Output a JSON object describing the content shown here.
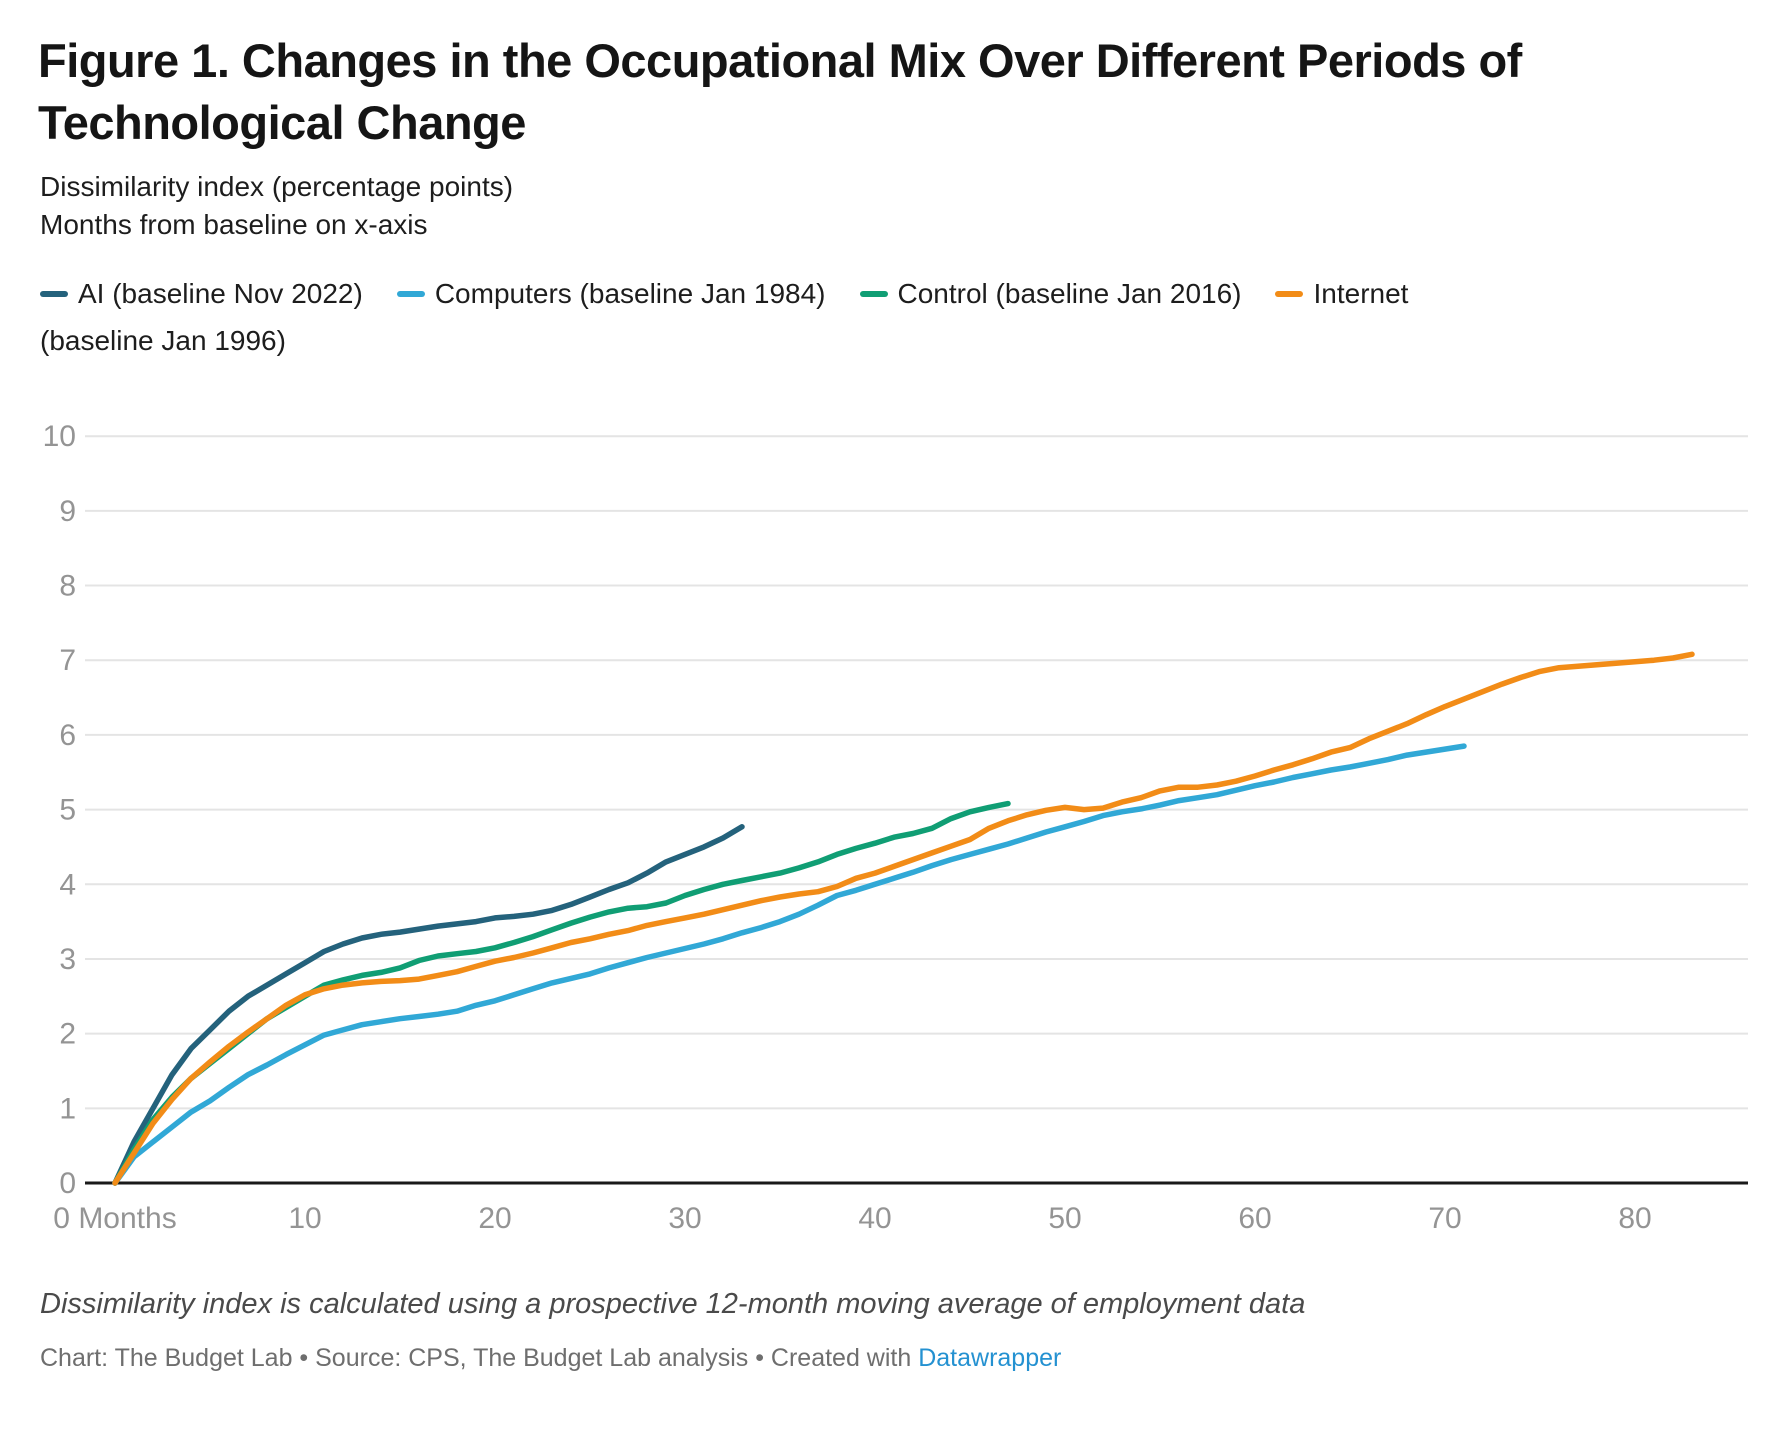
{
  "header": {
    "title": "Figure 1. Changes in the Occupational Mix Over Different Periods of Technological Change",
    "subtitle_line1": "Dissimilarity index (percentage points)",
    "subtitle_line2": "Months from baseline on x-axis"
  },
  "legend": {
    "items": [
      {
        "label": "AI (baseline Nov 2022)",
        "color": "#24627c"
      },
      {
        "label": "Computers (baseline Jan 1984)",
        "color": "#31a8d6"
      },
      {
        "label": "Control (baseline Jan 2016)",
        "color": "#109e74"
      },
      {
        "label": "Internet (baseline Jan 1996)",
        "color": "#f28c17"
      }
    ]
  },
  "chart_data": {
    "type": "line",
    "title": "Figure 1. Changes in the Occupational Mix Over Different Periods of Technological Change",
    "xlabel": "Months from baseline",
    "ylabel": "Dissimilarity index (percentage points)",
    "x_unit": "months",
    "xlim": [
      0,
      86
    ],
    "ylim": [
      0,
      10
    ],
    "grid": "horizontal",
    "legend_position": "top",
    "y_ticks": [
      0,
      1,
      2,
      3,
      4,
      5,
      6,
      7,
      8,
      9,
      10
    ],
    "x_ticks": {
      "values": [
        0,
        10,
        20,
        30,
        40,
        50,
        60,
        70,
        80
      ],
      "labels": [
        "0 Months",
        "10",
        "20",
        "30",
        "40",
        "50",
        "60",
        "70",
        "80"
      ]
    },
    "series": [
      {
        "name": "AI (baseline Nov 2022)",
        "color": "#24627c",
        "start_month": 0,
        "values": [
          0,
          0.55,
          1.0,
          1.45,
          1.8,
          2.05,
          2.3,
          2.5,
          2.65,
          2.8,
          2.95,
          3.1,
          3.2,
          3.28,
          3.33,
          3.36,
          3.4,
          3.44,
          3.47,
          3.5,
          3.55,
          3.57,
          3.6,
          3.65,
          3.73,
          3.83,
          3.93,
          4.02,
          4.15,
          4.3,
          4.4,
          4.5,
          4.62,
          4.77
        ]
      },
      {
        "name": "Computers (baseline Jan 1984)",
        "color": "#31a8d6",
        "start_month": 0,
        "values": [
          0,
          0.35,
          0.55,
          0.75,
          0.95,
          1.1,
          1.28,
          1.45,
          1.58,
          1.72,
          1.85,
          1.98,
          2.05,
          2.12,
          2.16,
          2.2,
          2.23,
          2.26,
          2.3,
          2.38,
          2.44,
          2.52,
          2.6,
          2.68,
          2.74,
          2.8,
          2.88,
          2.95,
          3.02,
          3.08,
          3.14,
          3.2,
          3.27,
          3.35,
          3.42,
          3.5,
          3.6,
          3.72,
          3.85,
          3.92,
          4.0,
          4.08,
          4.16,
          4.25,
          4.33,
          4.4,
          4.47,
          4.54,
          4.62,
          4.7,
          4.77,
          4.84,
          4.92,
          4.97,
          5.01,
          5.06,
          5.12,
          5.16,
          5.2,
          5.26,
          5.32,
          5.37,
          5.43,
          5.48,
          5.53,
          5.57,
          5.62,
          5.67,
          5.73,
          5.77,
          5.81,
          5.85
        ]
      },
      {
        "name": "Control (baseline Jan 2016)",
        "color": "#109e74",
        "start_month": 0,
        "values": [
          0,
          0.45,
          0.85,
          1.15,
          1.4,
          1.6,
          1.8,
          2.0,
          2.2,
          2.35,
          2.5,
          2.65,
          2.72,
          2.78,
          2.82,
          2.88,
          2.98,
          3.04,
          3.07,
          3.1,
          3.15,
          3.22,
          3.3,
          3.39,
          3.48,
          3.56,
          3.63,
          3.68,
          3.7,
          3.75,
          3.85,
          3.93,
          4.0,
          4.05,
          4.1,
          4.15,
          4.22,
          4.3,
          4.4,
          4.48,
          4.55,
          4.63,
          4.68,
          4.75,
          4.88,
          4.97,
          5.03,
          5.08
        ]
      },
      {
        "name": "Internet (baseline Jan 1996)",
        "color": "#f28c17",
        "start_month": 0,
        "values": [
          0,
          0.4,
          0.8,
          1.12,
          1.4,
          1.62,
          1.83,
          2.02,
          2.2,
          2.38,
          2.52,
          2.6,
          2.65,
          2.68,
          2.7,
          2.71,
          2.73,
          2.78,
          2.83,
          2.9,
          2.97,
          3.02,
          3.08,
          3.15,
          3.22,
          3.27,
          3.33,
          3.38,
          3.45,
          3.5,
          3.55,
          3.6,
          3.66,
          3.72,
          3.78,
          3.83,
          3.87,
          3.9,
          3.97,
          4.08,
          4.15,
          4.24,
          4.33,
          4.42,
          4.51,
          4.6,
          4.75,
          4.85,
          4.93,
          4.99,
          5.03,
          5.0,
          5.02,
          5.1,
          5.16,
          5.25,
          5.3,
          5.3,
          5.33,
          5.38,
          5.45,
          5.53,
          5.6,
          5.68,
          5.77,
          5.83,
          5.95,
          6.05,
          6.15,
          6.27,
          6.38,
          6.48,
          6.58,
          6.68,
          6.77,
          6.85,
          6.9,
          6.92,
          6.94,
          6.96,
          6.98,
          7.0,
          7.03,
          7.08
        ]
      }
    ]
  },
  "footer": {
    "note": "Dissimilarity index is calculated using a prospective 12-month moving average of employment data",
    "credit_prefix": "Chart: The Budget Lab • Source: CPS, The Budget Lab analysis • Created with ",
    "credit_link": "Datawrapper"
  }
}
